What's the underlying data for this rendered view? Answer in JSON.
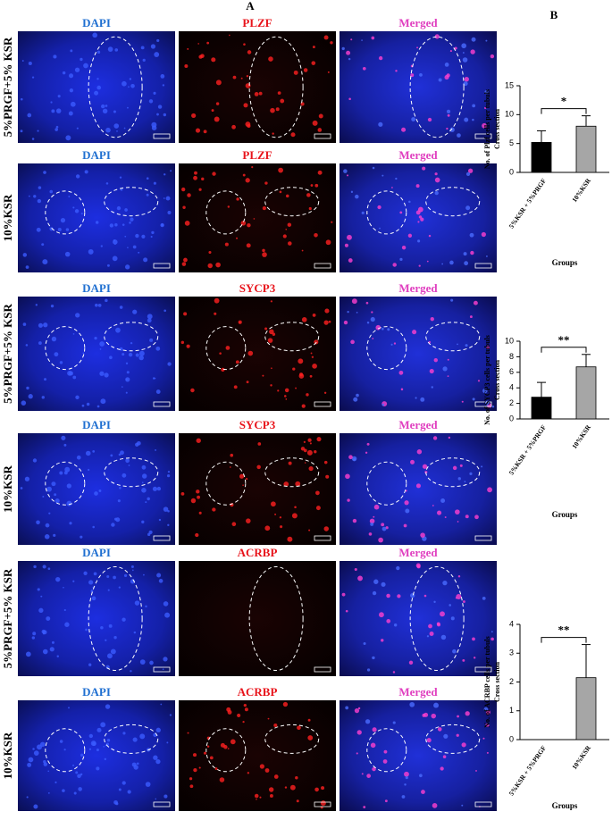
{
  "panel_labels": [
    "A",
    "B"
  ],
  "image_rows": [
    {
      "label": "5%PRGF+5% KSR",
      "channels": [
        "DAPI",
        "PLZF",
        "Merged"
      ]
    },
    {
      "label": "10%KSR",
      "channels": [
        "DAPI",
        "PLZF",
        "Merged"
      ]
    },
    {
      "label": "5%PRGF+5% KSR",
      "channels": [
        "DAPI",
        "SYCP3",
        "Merged"
      ]
    },
    {
      "label": "10%KSR",
      "channels": [
        "DAPI",
        "SYCP3",
        "Merged"
      ]
    },
    {
      "label": "5%PRGF+5% KSR",
      "channels": [
        "DAPI",
        "ACRBP",
        "Merged"
      ]
    },
    {
      "label": "10%KSR",
      "channels": [
        "DAPI",
        "ACRBP",
        "Merged"
      ]
    }
  ],
  "chart_data": [
    {
      "type": "bar",
      "ylabel": [
        "No. of Plzf cells per tubuls",
        "Cross section"
      ],
      "xlabel": "Groups",
      "categories": [
        "5%KSR + 5%PRGF",
        "10%KSR"
      ],
      "values": [
        5.2,
        8.0
      ],
      "errors": [
        2.0,
        1.8
      ],
      "colors": [
        "#000000",
        "#a6a6a6"
      ],
      "ylim": [
        0,
        15
      ],
      "yticks": [
        0,
        5,
        10,
        15
      ],
      "annotation": "*"
    },
    {
      "type": "bar",
      "ylabel": [
        "No. of SYCP3 cells per tubuls",
        "Cross section"
      ],
      "xlabel": "Groups",
      "categories": [
        "5%KSR + 5%PRGF",
        "10%KSR"
      ],
      "values": [
        2.8,
        6.7
      ],
      "errors": [
        1.9,
        1.6
      ],
      "colors": [
        "#000000",
        "#a6a6a6"
      ],
      "ylim": [
        0,
        10
      ],
      "yticks": [
        0,
        2,
        4,
        6,
        8,
        10
      ],
      "annotation": "**"
    },
    {
      "type": "bar",
      "ylabel": [
        "No. of ACRBP cells per tubuls",
        "Cross section"
      ],
      "xlabel": "Groups",
      "categories": [
        "5%KSR + 5%PRGF",
        "10%KSR"
      ],
      "values": [
        0,
        2.15
      ],
      "errors": [
        0,
        1.15
      ],
      "colors": [
        "#000000",
        "#a6a6a6"
      ],
      "ylim": [
        0,
        4
      ],
      "yticks": [
        0,
        1,
        2,
        3,
        4
      ],
      "annotation": "**"
    }
  ]
}
